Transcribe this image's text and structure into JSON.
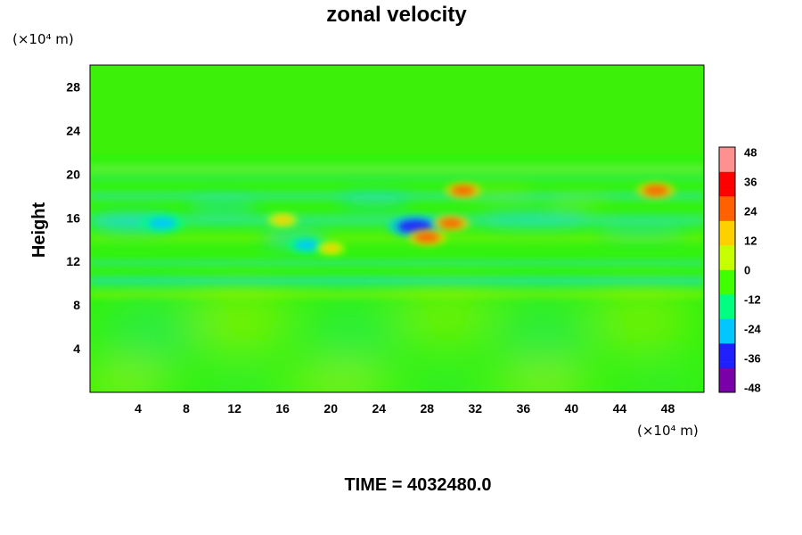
{
  "chart_data": {
    "type": "heatmap",
    "title": "zonal velocity",
    "xlabel": "",
    "ylabel": "Height",
    "x_unit": "(×10⁴ m)",
    "y_unit": "(×10⁴ m)",
    "xlim": [
      0,
      51
    ],
    "ylim": [
      0,
      30
    ],
    "x_ticks": [
      4,
      8,
      12,
      16,
      20,
      24,
      28,
      32,
      36,
      40,
      44,
      48
    ],
    "y_ticks": [
      4,
      8,
      12,
      16,
      20,
      24,
      28
    ],
    "colorbar": {
      "min": -50,
      "max": 50,
      "ticks": [
        48,
        36,
        24,
        12,
        0,
        -12,
        -24,
        -36,
        -48
      ],
      "colors": [
        "#7a00a8",
        "#2020ff",
        "#00c8ff",
        "#00ff80",
        "#40ff00",
        "#c8ff00",
        "#ffd000",
        "#ff6000",
        "#ff0000",
        "#ff9090"
      ]
    },
    "features": [
      {
        "x": 27,
        "y": 15.2,
        "value": -38
      },
      {
        "x": 6,
        "y": 15.5,
        "value": -28
      },
      {
        "x": 18,
        "y": 13.5,
        "value": -24
      },
      {
        "x": 28,
        "y": 14.2,
        "value": 22
      },
      {
        "x": 30,
        "y": 15.5,
        "value": 20
      },
      {
        "x": 31,
        "y": 18.5,
        "value": 20
      },
      {
        "x": 47,
        "y": 18.5,
        "value": 22
      },
      {
        "x": 16,
        "y": 15.8,
        "value": 14
      },
      {
        "x": 20,
        "y": 13.2,
        "value": 12
      }
    ],
    "annotation": "TIME = 4032480.0"
  }
}
